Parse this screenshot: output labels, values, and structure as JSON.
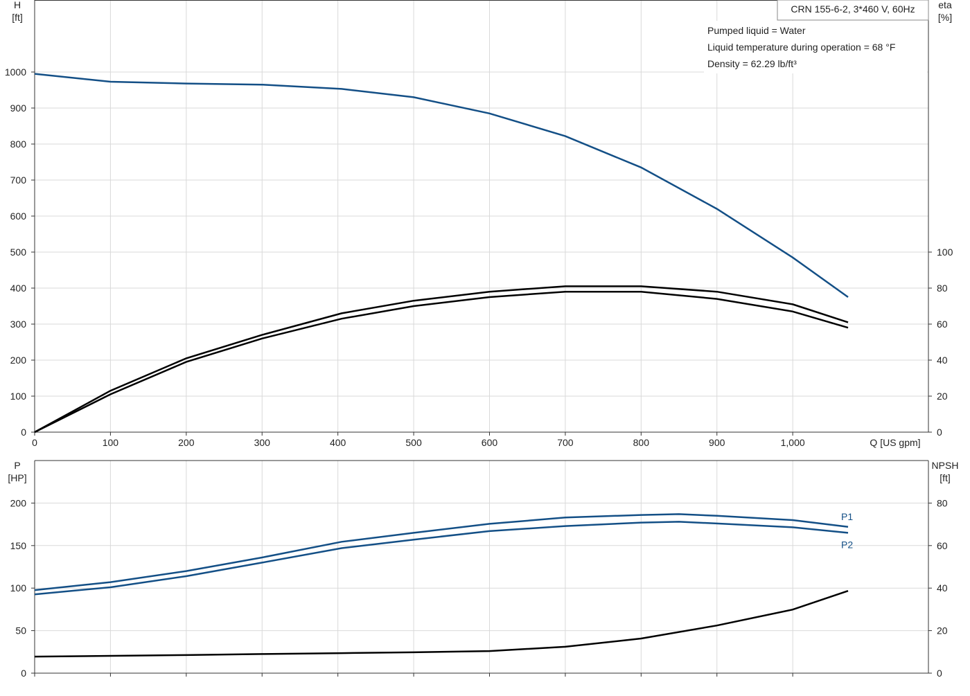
{
  "chart_data": [
    {
      "type": "line",
      "title": "CRN 155-6-2, 3*460 V, 60Hz",
      "annotations": [
        "Pumped liquid = Water",
        "Liquid temperature during operation = 68 °F",
        "Density = 62.29 lb/ft³"
      ],
      "xlabel": "Q [US gpm]",
      "ylabel": [
        "H",
        "[ft]"
      ],
      "y2label": [
        "eta",
        "[%]"
      ],
      "xlim": [
        0,
        1179
      ],
      "xticks": [
        0,
        100,
        200,
        300,
        400,
        500,
        600,
        700,
        800,
        900,
        {
          "value": 1000,
          "label": "1,000"
        }
      ],
      "ylim": [
        0,
        1200
      ],
      "yticks": [
        0,
        100,
        200,
        300,
        400,
        500,
        600,
        700,
        800,
        900,
        1000
      ],
      "y2lim": [
        0,
        240
      ],
      "y2ticks": [
        0,
        20,
        40,
        60,
        80,
        100
      ],
      "grid": true,
      "series": [
        {
          "color": "#134f86",
          "x": [
            0,
            100,
            200,
            300,
            405,
            500,
            600,
            700,
            800,
            900,
            1000,
            1073
          ],
          "values": [
            995,
            973,
            968,
            965,
            953,
            930,
            885,
            822,
            735,
            620,
            485,
            375
          ]
        },
        {
          "color": "#000000",
          "axis": "y2",
          "x": [
            0,
            100,
            200,
            300,
            405,
            500,
            600,
            700,
            800,
            900,
            1000,
            1073
          ],
          "values": [
            0,
            23,
            41,
            54,
            66,
            73,
            78,
            81,
            81,
            78,
            71,
            61
          ]
        },
        {
          "color": "#000000",
          "axis": "y2",
          "x": [
            0,
            100,
            200,
            300,
            405,
            500,
            600,
            700,
            800,
            900,
            1000,
            1073
          ],
          "values": [
            0,
            21,
            39,
            52,
            63,
            70,
            75,
            78,
            78,
            74,
            67,
            58
          ]
        }
      ]
    },
    {
      "type": "line",
      "ylabel": [
        "P",
        "[HP]"
      ],
      "y2label": [
        "NPSH",
        "[ft]"
      ],
      "xlim": [
        0,
        1179
      ],
      "xticks": [
        0,
        100,
        200,
        300,
        400,
        500,
        600,
        700,
        800,
        900,
        1000
      ],
      "ylim": [
        0,
        250
      ],
      "yticks": [
        0,
        50,
        100,
        150,
        200
      ],
      "y2lim": [
        0,
        100
      ],
      "y2ticks": [
        0,
        20,
        40,
        60,
        80
      ],
      "grid": true,
      "series": [
        {
          "name": "P1",
          "color": "#134f86",
          "x": [
            0,
            100,
            200,
            300,
            405,
            500,
            600,
            700,
            800,
            850,
            900,
            1000,
            1073
          ],
          "values": [
            97.6,
            107,
            120,
            136,
            154.5,
            165,
            175.6,
            183,
            186,
            187,
            185,
            180,
            172
          ]
        },
        {
          "name": "P2",
          "color": "#134f86",
          "x": [
            0,
            100,
            200,
            300,
            405,
            500,
            600,
            700,
            800,
            850,
            900,
            1000,
            1073
          ],
          "values": [
            92.7,
            101,
            114,
            130,
            147,
            157,
            167,
            173,
            177,
            178,
            176,
            171.5,
            165
          ]
        },
        {
          "color": "#000000",
          "axis": "y2",
          "x": [
            0,
            200,
            300,
            405,
            500,
            600,
            700,
            800,
            900,
            1000,
            1073
          ],
          "values": [
            7.8,
            8.5,
            9,
            9.4,
            9.8,
            10.4,
            12.4,
            16.3,
            22.4,
            29.9,
            38.7
          ]
        }
      ]
    }
  ]
}
